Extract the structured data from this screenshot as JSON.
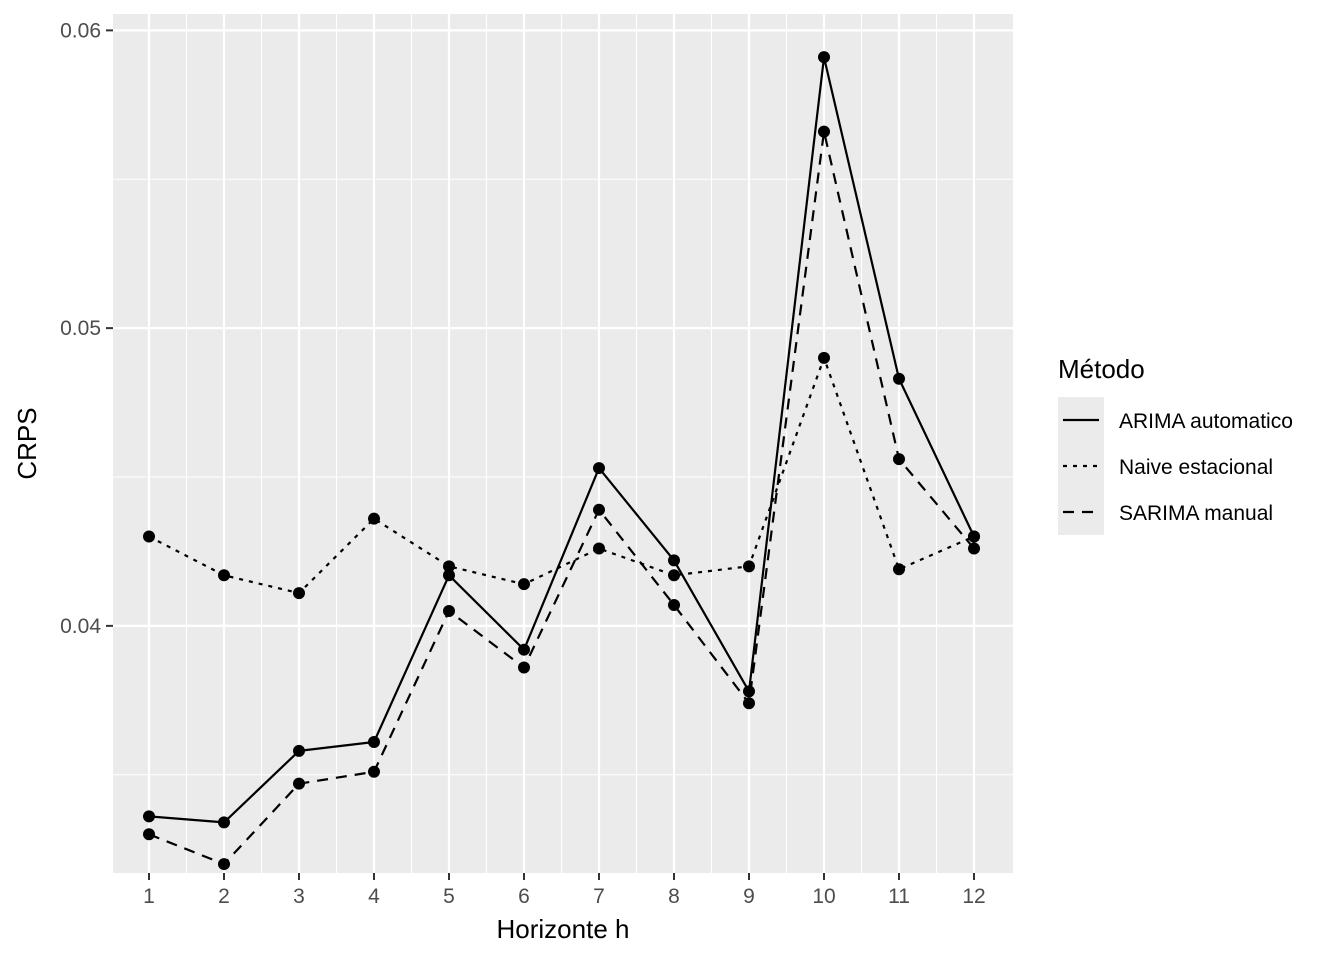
{
  "chart_data": {
    "type": "line",
    "xlabel": "Horizonte h",
    "ylabel": "CRPS",
    "x": [
      1,
      2,
      3,
      4,
      5,
      6,
      7,
      8,
      9,
      10,
      11,
      12
    ],
    "x_tick_labels": [
      "1",
      "2",
      "3",
      "4",
      "5",
      "6",
      "7",
      "8",
      "9",
      "10",
      "11",
      "12"
    ],
    "xlim": [
      0.52,
      12.52
    ],
    "ylim": [
      0.0317,
      0.06055
    ],
    "y_ticks": [
      0.04,
      0.05,
      0.06
    ],
    "y_tick_labels": [
      "0.04",
      "0.05",
      "0.06"
    ],
    "grid": true,
    "markers": true,
    "legend": {
      "title": "Método",
      "position": "right"
    },
    "series": [
      {
        "name": "ARIMA automatico",
        "linetype": "solid",
        "values": [
          0.0336,
          0.0334,
          0.0358,
          0.0361,
          0.0417,
          0.0392,
          0.0453,
          0.0422,
          0.0378,
          0.0591,
          0.0483,
          0.043
        ]
      },
      {
        "name": "Naive estacional",
        "linetype": "dotted",
        "values": [
          0.043,
          0.0417,
          0.0411,
          0.0436,
          0.042,
          0.0414,
          0.0426,
          0.0417,
          0.042,
          0.049,
          0.0419,
          0.043
        ]
      },
      {
        "name": "SARIMA manual",
        "linetype": "dashed",
        "values": [
          0.033,
          0.032,
          0.0347,
          0.0351,
          0.0405,
          0.0386,
          0.0439,
          0.0407,
          0.0374,
          0.0566,
          0.0456,
          0.0426
        ]
      }
    ],
    "colors": {
      "panel_bg": "#ebebeb",
      "grid_major": "#ffffff",
      "line": "#000000",
      "tick_text": "#4d4d4d",
      "legend_key_bg": "#ebebeb"
    }
  }
}
